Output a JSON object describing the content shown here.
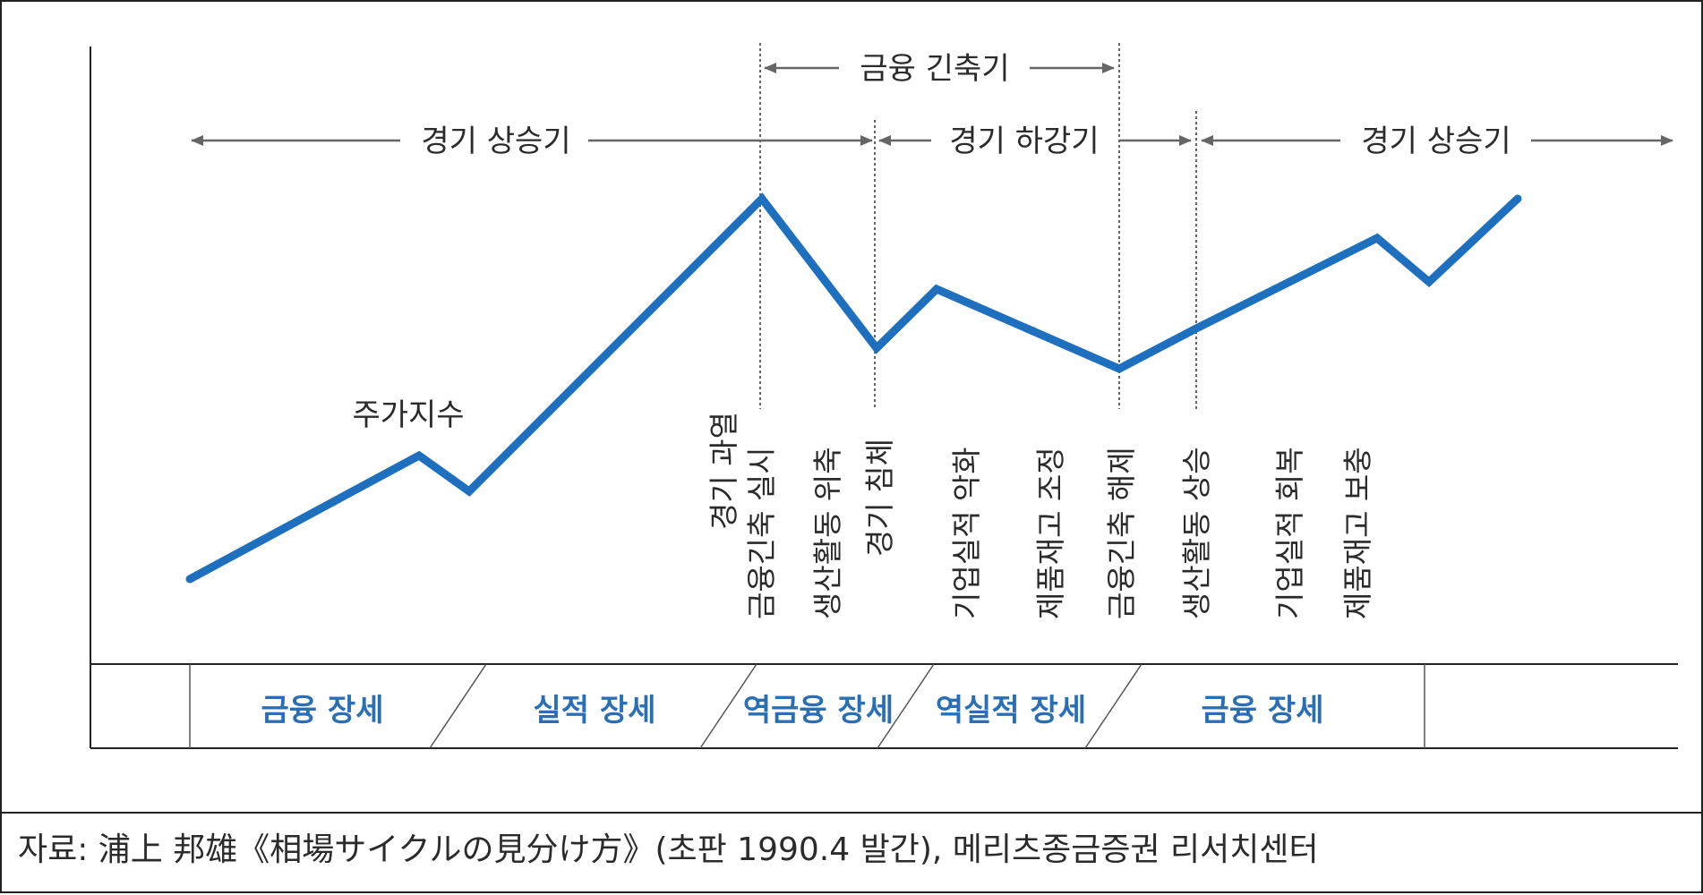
{
  "periods": [
    {
      "id": "boom-1",
      "label": "경기 상승기"
    },
    {
      "id": "tightening",
      "label": "금융 긴축기"
    },
    {
      "id": "recession",
      "label": "경기 하강기"
    },
    {
      "id": "boom-2",
      "label": "경기 상승기"
    }
  ],
  "series_label": "주가지수",
  "events": [
    {
      "id": "overheating",
      "label": "경기 과열"
    },
    {
      "id": "tightening-start",
      "label": "금융긴축 실시"
    },
    {
      "id": "production-shrink",
      "label": "생산활동 위축"
    },
    {
      "id": "stagnation",
      "label": "경기 침체"
    },
    {
      "id": "earnings-worsen",
      "label": "기업실적 악화"
    },
    {
      "id": "inventory-adjust",
      "label": "제품재고 조정"
    },
    {
      "id": "tightening-end",
      "label": "금융긴축 해제"
    },
    {
      "id": "production-rise",
      "label": "생산활동 상승"
    },
    {
      "id": "earnings-recover",
      "label": "기업실적 회복"
    },
    {
      "id": "inventory-restock",
      "label": "제품재고 보충"
    }
  ],
  "phases": [
    {
      "id": "financial-1",
      "label": "금융 장세"
    },
    {
      "id": "earnings",
      "label": "실적 장세"
    },
    {
      "id": "reverse-financial",
      "label": "역금융 장세"
    },
    {
      "id": "reverse-earnings",
      "label": "역실적 장세"
    },
    {
      "id": "financial-2",
      "label": "금융 장세"
    }
  ],
  "source_note": "자료: 浦上 邦雄《相場サイクルの見分け方》(초판 1990.4 발간), 메리츠종금증권 리서치센터",
  "colors": {
    "line": "#1f6fbf",
    "phase_text": "#2a6fb5",
    "arrow": "#666666",
    "frame": "#222222"
  }
}
